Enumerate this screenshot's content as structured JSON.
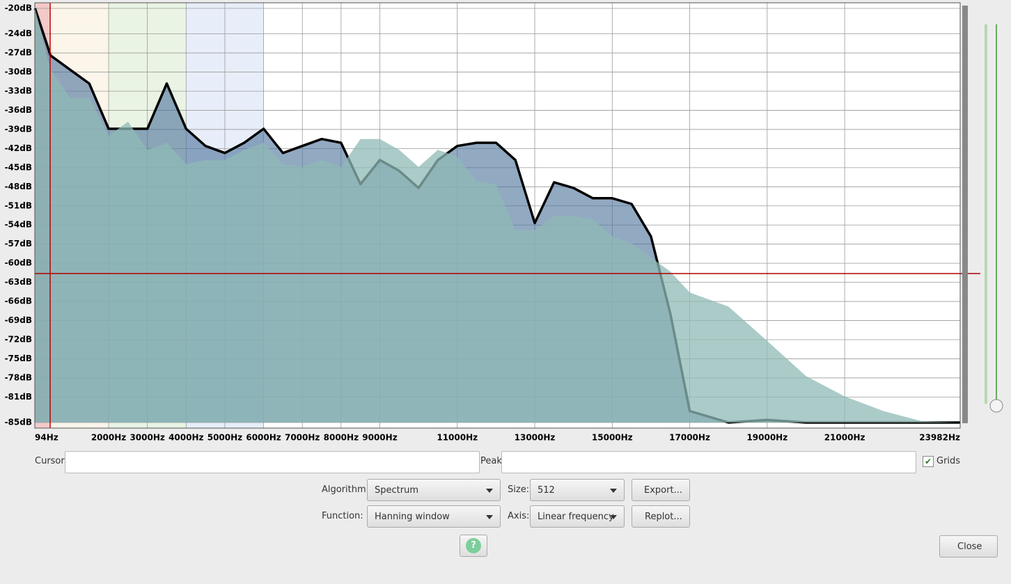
{
  "chart_data": {
    "type": "area",
    "x": [
      100,
      500,
      1000,
      1500,
      2000,
      2500,
      3000,
      3500,
      4000,
      4500,
      5000,
      5500,
      6000,
      6500,
      7000,
      7500,
      8000,
      8500,
      9000,
      9500,
      10000,
      10500,
      11000,
      11500,
      12000,
      12500,
      13000,
      13500,
      14000,
      14500,
      15000,
      15500,
      16000,
      16500,
      17000,
      18000,
      19000,
      20000,
      21000,
      22000,
      23000,
      23982
    ],
    "series": [
      {
        "color": "#000000",
        "values": [
          -20,
          -27.4,
          -29.6,
          -31.8,
          -38.9,
          -38.9,
          -38.9,
          -31.8,
          -38.9,
          -41.6,
          -42.7,
          -41.1,
          -38.9,
          -42.7,
          -41.6,
          -40.5,
          -41.1,
          -47.6,
          -43.8,
          -45.5,
          -48.2,
          -43.8,
          -41.6,
          -41.1,
          -41.1,
          -43.8,
          -53.7,
          -47.3,
          -48.2,
          -49.8,
          -49.8,
          -50.7,
          -55.8,
          -67.9,
          -83.2,
          -85,
          -84.6,
          -85,
          -85,
          -85,
          -85,
          -85
        ]
      },
      {
        "color": "#8fbab6",
        "values": [
          -20,
          -29.6,
          -34,
          -34,
          -40,
          -37.8,
          -42.2,
          -41.1,
          -44.4,
          -43.8,
          -43.8,
          -42.2,
          -41.1,
          -44.4,
          -44.9,
          -43.8,
          -44.9,
          -40.5,
          -40.5,
          -42.2,
          -44.9,
          -42.2,
          -43.3,
          -47.1,
          -47.6,
          -54.8,
          -54.8,
          -52.6,
          -52.6,
          -53.1,
          -55.8,
          -56.9,
          -59.1,
          -61.3,
          -64.6,
          -66.8,
          -72.2,
          -77.7,
          -80.9,
          -83.2,
          -84.8,
          -85
        ]
      }
    ],
    "xlim": [
      94,
      23982
    ],
    "xticks": [
      {
        "value": 94,
        "label": "94Hz"
      },
      {
        "value": 2000,
        "label": "2000Hz"
      },
      {
        "value": 3000,
        "label": "3000Hz"
      },
      {
        "value": 4000,
        "label": "4000Hz"
      },
      {
        "value": 5000,
        "label": "5000Hz"
      },
      {
        "value": 6000,
        "label": "6000Hz"
      },
      {
        "value": 7000,
        "label": "7000Hz"
      },
      {
        "value": 8000,
        "label": "8000Hz"
      },
      {
        "value": 9000,
        "label": "9000Hz"
      },
      {
        "value": 11000,
        "label": "11000Hz"
      },
      {
        "value": 13000,
        "label": "13000Hz"
      },
      {
        "value": 15000,
        "label": "15000Hz"
      },
      {
        "value": 17000,
        "label": "17000Hz"
      },
      {
        "value": 19000,
        "label": "19000Hz"
      },
      {
        "value": 21000,
        "label": "21000Hz"
      },
      {
        "value": 23982,
        "label": "23982Hz"
      }
    ],
    "ylim": [
      -85,
      -20
    ],
    "yticks": [
      {
        "value": -20,
        "label": "-20dB"
      },
      {
        "value": -24,
        "label": "-24dB"
      },
      {
        "value": -27,
        "label": "-27dB"
      },
      {
        "value": -30,
        "label": "-30dB"
      },
      {
        "value": -33,
        "label": "-33dB"
      },
      {
        "value": -36,
        "label": "-36dB"
      },
      {
        "value": -39,
        "label": "-39dB"
      },
      {
        "value": -42,
        "label": "-42dB"
      },
      {
        "value": -45,
        "label": "-45dB"
      },
      {
        "value": -48,
        "label": "-48dB"
      },
      {
        "value": -51,
        "label": "-51dB"
      },
      {
        "value": -54,
        "label": "-54dB"
      },
      {
        "value": -57,
        "label": "-57dB"
      },
      {
        "value": -60,
        "label": "-60dB"
      },
      {
        "value": -63,
        "label": "-63dB"
      },
      {
        "value": -66,
        "label": "-66dB"
      },
      {
        "value": -69,
        "label": "-69dB"
      },
      {
        "value": -72,
        "label": "-72dB"
      },
      {
        "value": -75,
        "label": "-75dB"
      },
      {
        "value": -78,
        "label": "-78dB"
      },
      {
        "value": -81,
        "label": "-81dB"
      },
      {
        "value": -85,
        "label": "-85dB"
      }
    ],
    "grid": true
  },
  "controls": {
    "cursor": "Cursor:",
    "peak": "Peak:",
    "grids": "Grids",
    "algorithm": "Algorithm:",
    "algorithm_value": "Spectrum",
    "size": "Size:",
    "size_value": "512",
    "export": "Export...",
    "function": "Function:",
    "function_value": "Hanning window",
    "axis": "Axis:",
    "axis_value": "Linear frequency",
    "replot": "Replot...",
    "close": "Close"
  }
}
